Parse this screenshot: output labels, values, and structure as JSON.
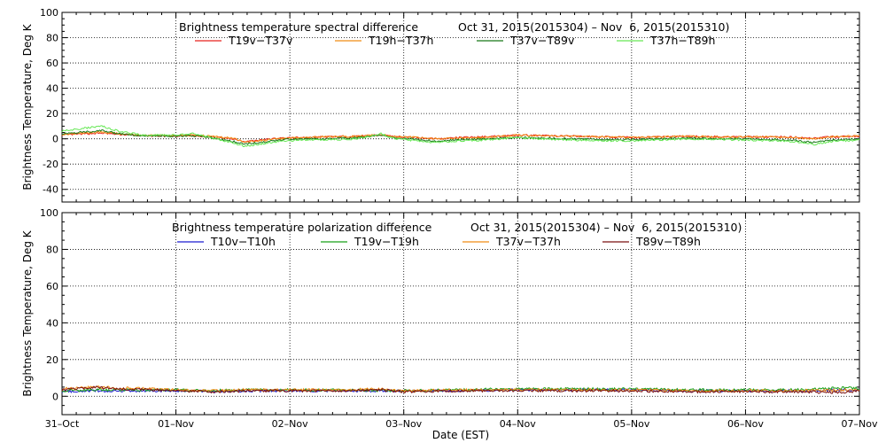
{
  "chart_data": [
    {
      "type": "line",
      "title": "Brightness temperature spectral difference",
      "date_range": "Oct 31, 2015(2015304) – Nov  6, 2015(2015310)",
      "ylabel": "Brightness Temperature, Deg K",
      "xlabel": "",
      "ylim": [
        -50,
        100
      ],
      "yticks": [
        "100",
        "80",
        "60",
        "40",
        "20",
        "0",
        "-20",
        "-40"
      ],
      "xlim": [
        "2015-10-31",
        "2015-11-07"
      ],
      "grid": true,
      "legend_position": "top",
      "series": [
        {
          "name": "T19v−T37v",
          "color": "#e8201c",
          "values": [
            [
              0,
              3
            ],
            [
              0.1,
              3.5
            ],
            [
              0.2,
              4
            ],
            [
              0.35,
              4.5
            ],
            [
              0.5,
              3.5
            ],
            [
              0.7,
              2.5
            ],
            [
              1.0,
              2
            ],
            [
              1.15,
              2.5
            ],
            [
              1.3,
              1.5
            ],
            [
              1.5,
              0
            ],
            [
              1.6,
              -2
            ],
            [
              1.75,
              -1
            ],
            [
              1.9,
              0.5
            ],
            [
              2.1,
              1
            ],
            [
              2.3,
              1.5
            ],
            [
              2.6,
              2
            ],
            [
              2.8,
              3
            ],
            [
              2.9,
              2
            ],
            [
              3.1,
              1
            ],
            [
              3.3,
              0
            ],
            [
              3.5,
              1
            ],
            [
              3.7,
              1.5
            ],
            [
              4.0,
              3
            ],
            [
              4.2,
              2.5
            ],
            [
              4.5,
              2
            ],
            [
              4.8,
              1.5
            ],
            [
              5.0,
              1
            ],
            [
              5.2,
              1.5
            ],
            [
              5.5,
              2
            ],
            [
              5.8,
              1.5
            ],
            [
              6.0,
              1.5
            ],
            [
              6.3,
              1.5
            ],
            [
              6.5,
              1
            ],
            [
              6.6,
              0.5
            ],
            [
              6.75,
              1.5
            ],
            [
              7.0,
              2
            ]
          ]
        },
        {
          "name": "T19h−T37h",
          "color": "#f08c14",
          "values": [
            [
              0,
              3.5
            ],
            [
              0.2,
              4.5
            ],
            [
              0.35,
              5.5
            ],
            [
              0.5,
              4
            ],
            [
              0.7,
              3
            ],
            [
              1.0,
              2.5
            ],
            [
              1.15,
              3
            ],
            [
              1.3,
              2
            ],
            [
              1.5,
              0.5
            ],
            [
              1.6,
              -2.5
            ],
            [
              1.75,
              -1.5
            ],
            [
              1.9,
              0
            ],
            [
              2.1,
              1
            ],
            [
              2.3,
              1.5
            ],
            [
              2.6,
              2
            ],
            [
              2.8,
              3.5
            ],
            [
              2.9,
              2
            ],
            [
              3.1,
              1
            ],
            [
              3.3,
              0
            ],
            [
              3.5,
              0.5
            ],
            [
              3.7,
              1
            ],
            [
              4.0,
              3
            ],
            [
              4.2,
              2.5
            ],
            [
              4.5,
              2
            ],
            [
              4.8,
              1.5
            ],
            [
              5.0,
              1
            ],
            [
              5.2,
              1.5
            ],
            [
              5.5,
              2
            ],
            [
              5.8,
              1.5
            ],
            [
              6.0,
              1.5
            ],
            [
              6.3,
              1.5
            ],
            [
              6.5,
              0.5
            ],
            [
              6.6,
              0
            ],
            [
              6.75,
              1.5
            ],
            [
              7.0,
              2.5
            ]
          ]
        },
        {
          "name": "T37v−T89v",
          "color": "#187818",
          "values": [
            [
              0,
              4
            ],
            [
              0.2,
              5.5
            ],
            [
              0.35,
              6.5
            ],
            [
              0.5,
              4
            ],
            [
              0.7,
              2.5
            ],
            [
              1.0,
              2
            ],
            [
              1.15,
              2.5
            ],
            [
              1.3,
              1
            ],
            [
              1.5,
              -2
            ],
            [
              1.6,
              -4
            ],
            [
              1.75,
              -3
            ],
            [
              1.9,
              -1
            ],
            [
              2.1,
              0
            ],
            [
              2.3,
              0
            ],
            [
              2.6,
              1
            ],
            [
              2.8,
              3
            ],
            [
              2.9,
              1
            ],
            [
              3.1,
              -0.5
            ],
            [
              3.3,
              -2
            ],
            [
              3.5,
              -0.5
            ],
            [
              3.7,
              0
            ],
            [
              4.0,
              1
            ],
            [
              4.2,
              0.5
            ],
            [
              4.5,
              0
            ],
            [
              4.8,
              -0.5
            ],
            [
              5.0,
              -0.5
            ],
            [
              5.2,
              0
            ],
            [
              5.5,
              0.5
            ],
            [
              5.8,
              0
            ],
            [
              6.0,
              0
            ],
            [
              6.3,
              -0.5
            ],
            [
              6.5,
              -2
            ],
            [
              6.6,
              -3
            ],
            [
              6.75,
              -1
            ],
            [
              7.0,
              0
            ]
          ]
        },
        {
          "name": "T37h−T89h",
          "color": "#66e855",
          "values": [
            [
              0,
              6
            ],
            [
              0.2,
              8.5
            ],
            [
              0.35,
              10
            ],
            [
              0.5,
              6
            ],
            [
              0.7,
              3
            ],
            [
              1.0,
              3
            ],
            [
              1.15,
              4
            ],
            [
              1.3,
              1
            ],
            [
              1.5,
              -3
            ],
            [
              1.6,
              -6
            ],
            [
              1.75,
              -4
            ],
            [
              1.9,
              -2
            ],
            [
              2.1,
              -1
            ],
            [
              2.3,
              -1
            ],
            [
              2.6,
              0
            ],
            [
              2.8,
              4
            ],
            [
              2.9,
              0.5
            ],
            [
              3.1,
              -1.5
            ],
            [
              3.3,
              -3
            ],
            [
              3.5,
              -1.5
            ],
            [
              3.7,
              -1
            ],
            [
              4.0,
              1
            ],
            [
              4.2,
              0
            ],
            [
              4.5,
              -1
            ],
            [
              4.8,
              -1.5
            ],
            [
              5.0,
              -1.5
            ],
            [
              5.2,
              -1
            ],
            [
              5.5,
              0
            ],
            [
              5.8,
              -0.5
            ],
            [
              6.0,
              -1
            ],
            [
              6.3,
              -1.5
            ],
            [
              6.5,
              -3
            ],
            [
              6.6,
              -4.5
            ],
            [
              6.75,
              -2
            ],
            [
              7.0,
              -1
            ]
          ]
        }
      ]
    },
    {
      "type": "line",
      "title": "Brightness temperature polarization difference",
      "date_range": "Oct 31, 2015(2015304) – Nov  6, 2015(2015310)",
      "ylabel": "Brightness Temperature, Deg K",
      "xlabel": "Date (EST)",
      "ylim": [
        -10,
        100
      ],
      "yticks": [
        "100",
        "80",
        "60",
        "40",
        "20",
        "0"
      ],
      "xlim": [
        "2015-10-31",
        "2015-11-07"
      ],
      "xticks": [
        "31–Oct",
        "01–Nov",
        "02–Nov",
        "03–Nov",
        "04–Nov",
        "05–Nov",
        "06–Nov",
        "07–Nov"
      ],
      "grid": true,
      "legend_position": "top",
      "series": [
        {
          "name": "T10v−T10h",
          "color": "#1c1cd0",
          "values": [
            [
              0,
              2.5
            ],
            [
              0.3,
              3
            ],
            [
              0.6,
              3
            ],
            [
              1.0,
              3
            ],
            [
              1.3,
              2.5
            ],
            [
              1.6,
              3
            ],
            [
              2.0,
              3
            ],
            [
              2.5,
              3
            ],
            [
              3.0,
              3
            ],
            [
              3.5,
              3
            ],
            [
              4.0,
              3.5
            ],
            [
              4.5,
              3.5
            ],
            [
              5.0,
              3.5
            ],
            [
              5.5,
              3
            ],
            [
              6.0,
              3
            ],
            [
              6.5,
              3
            ],
            [
              7.0,
              3.5
            ]
          ]
        },
        {
          "name": "T19v−T19h",
          "color": "#18a018",
          "values": [
            [
              0,
              3
            ],
            [
              0.3,
              3.5
            ],
            [
              0.6,
              3.5
            ],
            [
              1.0,
              3.5
            ],
            [
              1.3,
              3
            ],
            [
              1.6,
              3.5
            ],
            [
              2.0,
              3.5
            ],
            [
              2.5,
              3.5
            ],
            [
              3.0,
              3
            ],
            [
              3.5,
              3.5
            ],
            [
              4.0,
              4
            ],
            [
              4.5,
              4
            ],
            [
              5.0,
              4
            ],
            [
              5.5,
              3.5
            ],
            [
              6.0,
              3.5
            ],
            [
              6.5,
              3.5
            ],
            [
              6.8,
              4.5
            ],
            [
              7.0,
              4.5
            ]
          ]
        },
        {
          "name": "T37v−T37h",
          "color": "#f08c14",
          "values": [
            [
              0,
              4
            ],
            [
              0.3,
              5
            ],
            [
              0.5,
              4.5
            ],
            [
              0.8,
              4
            ],
            [
              1.0,
              3.5
            ],
            [
              1.3,
              3
            ],
            [
              1.6,
              3.5
            ],
            [
              2.0,
              3.5
            ],
            [
              2.5,
              3.5
            ],
            [
              2.8,
              4
            ],
            [
              3.0,
              3
            ],
            [
              3.5,
              3.5
            ],
            [
              4.0,
              3.5
            ],
            [
              4.5,
              3.5
            ],
            [
              5.0,
              3.5
            ],
            [
              5.5,
              3
            ],
            [
              6.0,
              3
            ],
            [
              6.5,
              3
            ],
            [
              7.0,
              3.5
            ]
          ]
        },
        {
          "name": "T89v−T89h",
          "color": "#7a1010",
          "values": [
            [
              0,
              3.5
            ],
            [
              0.3,
              5
            ],
            [
              0.5,
              4
            ],
            [
              0.8,
              3.5
            ],
            [
              1.0,
              3
            ],
            [
              1.3,
              2.5
            ],
            [
              1.6,
              3
            ],
            [
              2.0,
              3
            ],
            [
              2.5,
              3
            ],
            [
              2.8,
              3.5
            ],
            [
              3.0,
              2.5
            ],
            [
              3.5,
              3
            ],
            [
              4.0,
              3
            ],
            [
              4.5,
              3
            ],
            [
              5.0,
              3
            ],
            [
              5.5,
              2.5
            ],
            [
              6.0,
              2.5
            ],
            [
              6.5,
              2.5
            ],
            [
              6.8,
              2
            ],
            [
              7.0,
              3
            ]
          ]
        }
      ]
    }
  ]
}
